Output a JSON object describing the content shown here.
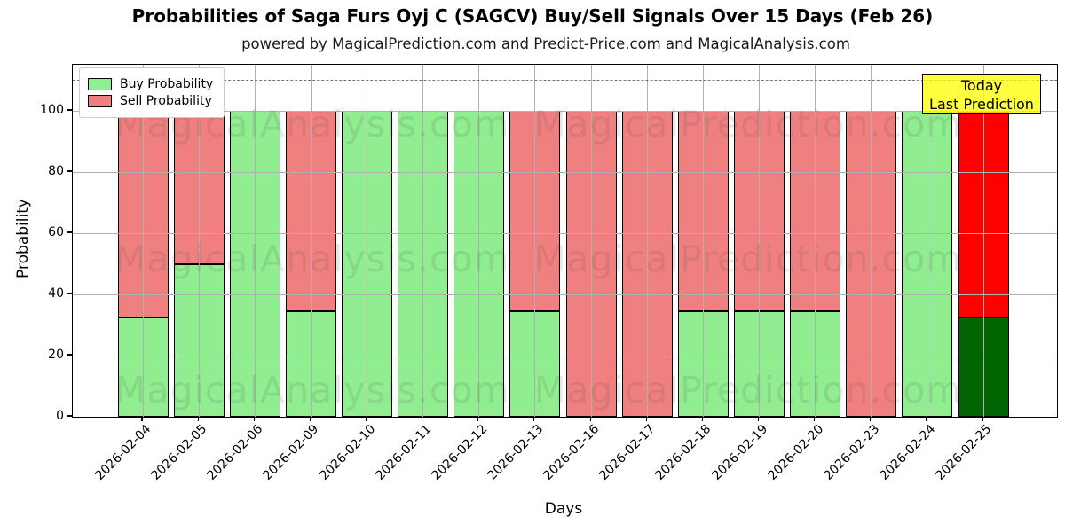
{
  "header": {
    "title": "Probabilities of Saga Furs Oyj C (SAGCV) Buy/Sell Signals Over 15 Days (Feb 26)",
    "subtitle": "powered by MagicalPrediction.com and Predict-Price.com and MagicalAnalysis.com"
  },
  "watermarks": {
    "left_text": "MagicalAnalysis.com",
    "right_text": "MagicalPrediction.com"
  },
  "legend": {
    "items": [
      {
        "label": "Buy Probability",
        "color": "#90EE90"
      },
      {
        "label": "Sell Probability",
        "color": "#F08080"
      }
    ]
  },
  "annotation": {
    "line1": "Today",
    "line2": "Last Prediction",
    "bg_color": "#FFFF00"
  },
  "axes": {
    "xlabel": "Days",
    "ylabel": "Probability",
    "yticks": [
      0,
      20,
      40,
      60,
      80,
      100
    ]
  },
  "colors": {
    "buy": "#90EE90",
    "sell": "#F08080",
    "today_buy": "#006400",
    "today_sell": "#FF0000",
    "grid": "#b0b0b0",
    "dashed_guide": "#777777"
  },
  "chart_data": {
    "type": "bar",
    "stacked": true,
    "title": "Probabilities of Saga Furs Oyj C (SAGCV) Buy/Sell Signals Over 15 Days (Feb 26)",
    "xlabel": "Days",
    "ylabel": "Probability",
    "ylim": [
      0,
      115
    ],
    "grid": true,
    "legend_position": "upper left",
    "dashed_guide_y": 110,
    "categories": [
      "2026-02-04",
      "2026-02-05",
      "2026-02-06",
      "2026-02-09",
      "2026-02-10",
      "2026-02-11",
      "2026-02-12",
      "2026-02-13",
      "2026-02-16",
      "2026-02-17",
      "2026-02-18",
      "2026-02-19",
      "2026-02-20",
      "2026-02-23",
      "2026-02-24",
      "2026-02-25"
    ],
    "series": [
      {
        "name": "Buy Probability",
        "color": "#90EE90",
        "values": [
          32.4,
          50,
          100,
          34.6,
          100,
          100,
          100,
          34.6,
          0,
          0,
          34.6,
          34.6,
          34.6,
          0,
          100,
          32.4
        ]
      },
      {
        "name": "Sell Probability",
        "color": "#F08080",
        "values": [
          67.6,
          50,
          0,
          65.4,
          0,
          0,
          0,
          65.4,
          100,
          100,
          65.4,
          65.4,
          65.4,
          100,
          0,
          67.6
        ]
      }
    ],
    "today_bar": {
      "index": 15,
      "category": "2026-02-25",
      "buy_color": "#006400",
      "sell_color": "#FF0000"
    }
  }
}
